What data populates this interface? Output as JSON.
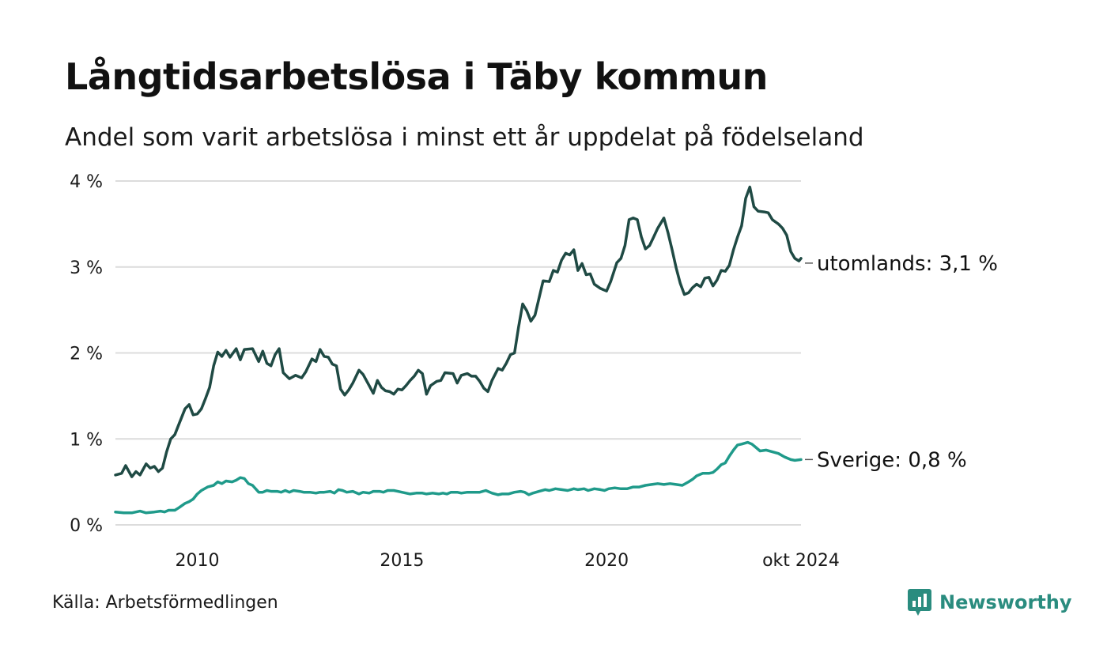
{
  "title": "Långtidsarbetslösa i Täby kommun",
  "subtitle": "Andel som varit arbetslösa i minst ett år uppdelat på födelseland",
  "source": "Källa: Arbetsförmedlingen",
  "brand": {
    "name": "Newsworthy",
    "icon": "newsworthy-logo-icon",
    "color": "#2a8c7f"
  },
  "chart_data": {
    "type": "line",
    "title": "Långtidsarbetslösa i Täby kommun",
    "ylabel": "",
    "xlabel": "",
    "ylim": [
      0,
      4
    ],
    "xlim": [
      2008.0,
      2024.75
    ],
    "y_ticks": [
      {
        "value": 0,
        "label": "0 %"
      },
      {
        "value": 1,
        "label": "1 %"
      },
      {
        "value": 2,
        "label": "2 %"
      },
      {
        "value": 3,
        "label": "3 %"
      },
      {
        "value": 4,
        "label": "4 %"
      }
    ],
    "x_ticks": [
      {
        "value": 2010,
        "label": "2010"
      },
      {
        "value": 2015,
        "label": "2015"
      },
      {
        "value": 2020,
        "label": "2020"
      },
      {
        "value": 2024.75,
        "label": "okt 2024"
      }
    ],
    "grid": true,
    "series": [
      {
        "name": "utomlands",
        "end_label": "utomlands: 3,1 %",
        "color": "#1f4a44",
        "points": [
          [
            2008.0,
            0.58
          ],
          [
            2008.15,
            0.6
          ],
          [
            2008.25,
            0.69
          ],
          [
            2008.4,
            0.56
          ],
          [
            2008.5,
            0.62
          ],
          [
            2008.6,
            0.58
          ],
          [
            2008.75,
            0.71
          ],
          [
            2008.85,
            0.66
          ],
          [
            2008.95,
            0.68
          ],
          [
            2009.05,
            0.62
          ],
          [
            2009.15,
            0.66
          ],
          [
            2009.25,
            0.85
          ],
          [
            2009.35,
            1.0
          ],
          [
            2009.45,
            1.05
          ],
          [
            2009.55,
            1.17
          ],
          [
            2009.7,
            1.35
          ],
          [
            2009.8,
            1.4
          ],
          [
            2009.9,
            1.28
          ],
          [
            2010.0,
            1.29
          ],
          [
            2010.1,
            1.35
          ],
          [
            2010.2,
            1.47
          ],
          [
            2010.3,
            1.6
          ],
          [
            2010.4,
            1.85
          ],
          [
            2010.5,
            2.01
          ],
          [
            2010.6,
            1.96
          ],
          [
            2010.7,
            2.03
          ],
          [
            2010.8,
            1.95
          ],
          [
            2010.95,
            2.05
          ],
          [
            2011.05,
            1.92
          ],
          [
            2011.15,
            2.04
          ],
          [
            2011.35,
            2.05
          ],
          [
            2011.5,
            1.9
          ],
          [
            2011.6,
            2.02
          ],
          [
            2011.7,
            1.88
          ],
          [
            2011.8,
            1.85
          ],
          [
            2011.9,
            1.98
          ],
          [
            2012.0,
            2.05
          ],
          [
            2012.1,
            1.77
          ],
          [
            2012.25,
            1.7
          ],
          [
            2012.4,
            1.74
          ],
          [
            2012.55,
            1.71
          ],
          [
            2012.65,
            1.78
          ],
          [
            2012.8,
            1.93
          ],
          [
            2012.9,
            1.9
          ],
          [
            2013.0,
            2.04
          ],
          [
            2013.1,
            1.96
          ],
          [
            2013.2,
            1.95
          ],
          [
            2013.3,
            1.87
          ],
          [
            2013.4,
            1.85
          ],
          [
            2013.5,
            1.58
          ],
          [
            2013.6,
            1.51
          ],
          [
            2013.7,
            1.57
          ],
          [
            2013.8,
            1.65
          ],
          [
            2013.95,
            1.8
          ],
          [
            2014.05,
            1.75
          ],
          [
            2014.2,
            1.62
          ],
          [
            2014.3,
            1.53
          ],
          [
            2014.4,
            1.68
          ],
          [
            2014.5,
            1.6
          ],
          [
            2014.6,
            1.56
          ],
          [
            2014.7,
            1.55
          ],
          [
            2014.8,
            1.52
          ],
          [
            2014.9,
            1.58
          ],
          [
            2015.0,
            1.57
          ],
          [
            2015.1,
            1.62
          ],
          [
            2015.2,
            1.68
          ],
          [
            2015.3,
            1.73
          ],
          [
            2015.4,
            1.8
          ],
          [
            2015.5,
            1.76
          ],
          [
            2015.6,
            1.52
          ],
          [
            2015.7,
            1.62
          ],
          [
            2015.85,
            1.67
          ],
          [
            2015.95,
            1.68
          ],
          [
            2016.05,
            1.77
          ],
          [
            2016.25,
            1.76
          ],
          [
            2016.35,
            1.65
          ],
          [
            2016.45,
            1.74
          ],
          [
            2016.6,
            1.76
          ],
          [
            2016.7,
            1.73
          ],
          [
            2016.8,
            1.73
          ],
          [
            2016.9,
            1.67
          ],
          [
            2017.0,
            1.59
          ],
          [
            2017.1,
            1.55
          ],
          [
            2017.2,
            1.68
          ],
          [
            2017.35,
            1.82
          ],
          [
            2017.45,
            1.8
          ],
          [
            2017.55,
            1.88
          ],
          [
            2017.65,
            1.98
          ],
          [
            2017.75,
            2.0
          ],
          [
            2017.85,
            2.3
          ],
          [
            2017.95,
            2.57
          ],
          [
            2018.05,
            2.49
          ],
          [
            2018.15,
            2.37
          ],
          [
            2018.25,
            2.44
          ],
          [
            2018.45,
            2.84
          ],
          [
            2018.6,
            2.83
          ],
          [
            2018.7,
            2.96
          ],
          [
            2018.8,
            2.94
          ],
          [
            2018.9,
            3.08
          ],
          [
            2019.0,
            3.16
          ],
          [
            2019.1,
            3.14
          ],
          [
            2019.2,
            3.2
          ],
          [
            2019.3,
            2.96
          ],
          [
            2019.4,
            3.04
          ],
          [
            2019.5,
            2.91
          ],
          [
            2019.6,
            2.92
          ],
          [
            2019.7,
            2.8
          ],
          [
            2019.85,
            2.75
          ],
          [
            2020.0,
            2.72
          ],
          [
            2020.1,
            2.83
          ],
          [
            2020.25,
            3.05
          ],
          [
            2020.35,
            3.1
          ],
          [
            2020.45,
            3.25
          ],
          [
            2020.55,
            3.55
          ],
          [
            2020.65,
            3.57
          ],
          [
            2020.75,
            3.55
          ],
          [
            2020.85,
            3.35
          ],
          [
            2020.95,
            3.21
          ],
          [
            2021.05,
            3.25
          ],
          [
            2021.15,
            3.35
          ],
          [
            2021.25,
            3.45
          ],
          [
            2021.4,
            3.57
          ],
          [
            2021.5,
            3.4
          ],
          [
            2021.6,
            3.2
          ],
          [
            2021.7,
            2.99
          ],
          [
            2021.8,
            2.81
          ],
          [
            2021.9,
            2.68
          ],
          [
            2022.0,
            2.7
          ],
          [
            2022.1,
            2.76
          ],
          [
            2022.2,
            2.8
          ],
          [
            2022.3,
            2.77
          ],
          [
            2022.4,
            2.87
          ],
          [
            2022.5,
            2.88
          ],
          [
            2022.6,
            2.78
          ],
          [
            2022.7,
            2.85
          ],
          [
            2022.8,
            2.96
          ],
          [
            2022.9,
            2.95
          ],
          [
            2023.0,
            3.02
          ],
          [
            2023.1,
            3.2
          ],
          [
            2023.2,
            3.35
          ],
          [
            2023.3,
            3.48
          ],
          [
            2023.4,
            3.8
          ],
          [
            2023.5,
            3.93
          ],
          [
            2023.6,
            3.7
          ],
          [
            2023.7,
            3.65
          ],
          [
            2023.85,
            3.64
          ],
          [
            2023.95,
            3.63
          ],
          [
            2024.05,
            3.55
          ],
          [
            2024.2,
            3.5
          ],
          [
            2024.3,
            3.45
          ],
          [
            2024.4,
            3.37
          ],
          [
            2024.5,
            3.18
          ],
          [
            2024.6,
            3.1
          ],
          [
            2024.7,
            3.07
          ],
          [
            2024.75,
            3.1
          ]
        ]
      },
      {
        "name": "Sverige",
        "end_label": "Sverige: 0,8 %",
        "color": "#1f9a8a",
        "points": [
          [
            2008.0,
            0.15
          ],
          [
            2008.2,
            0.14
          ],
          [
            2008.4,
            0.14
          ],
          [
            2008.6,
            0.16
          ],
          [
            2008.75,
            0.14
          ],
          [
            2008.95,
            0.15
          ],
          [
            2009.1,
            0.16
          ],
          [
            2009.2,
            0.15
          ],
          [
            2009.3,
            0.17
          ],
          [
            2009.45,
            0.17
          ],
          [
            2009.55,
            0.2
          ],
          [
            2009.7,
            0.25
          ],
          [
            2009.8,
            0.27
          ],
          [
            2009.9,
            0.3
          ],
          [
            2010.0,
            0.36
          ],
          [
            2010.1,
            0.4
          ],
          [
            2010.25,
            0.44
          ],
          [
            2010.4,
            0.46
          ],
          [
            2010.5,
            0.5
          ],
          [
            2010.6,
            0.48
          ],
          [
            2010.7,
            0.51
          ],
          [
            2010.85,
            0.5
          ],
          [
            2010.95,
            0.52
          ],
          [
            2011.05,
            0.55
          ],
          [
            2011.15,
            0.54
          ],
          [
            2011.25,
            0.48
          ],
          [
            2011.35,
            0.46
          ],
          [
            2011.5,
            0.38
          ],
          [
            2011.6,
            0.38
          ],
          [
            2011.7,
            0.4
          ],
          [
            2011.8,
            0.39
          ],
          [
            2011.95,
            0.39
          ],
          [
            2012.05,
            0.38
          ],
          [
            2012.15,
            0.4
          ],
          [
            2012.25,
            0.38
          ],
          [
            2012.35,
            0.4
          ],
          [
            2012.5,
            0.39
          ],
          [
            2012.6,
            0.38
          ],
          [
            2012.75,
            0.38
          ],
          [
            2012.9,
            0.37
          ],
          [
            2013.0,
            0.38
          ],
          [
            2013.1,
            0.38
          ],
          [
            2013.25,
            0.39
          ],
          [
            2013.35,
            0.37
          ],
          [
            2013.45,
            0.41
          ],
          [
            2013.55,
            0.4
          ],
          [
            2013.65,
            0.38
          ],
          [
            2013.8,
            0.39
          ],
          [
            2013.95,
            0.36
          ],
          [
            2014.05,
            0.38
          ],
          [
            2014.2,
            0.37
          ],
          [
            2014.3,
            0.39
          ],
          [
            2014.45,
            0.39
          ],
          [
            2014.55,
            0.38
          ],
          [
            2014.65,
            0.4
          ],
          [
            2014.8,
            0.4
          ],
          [
            2014.9,
            0.39
          ],
          [
            2015.0,
            0.38
          ],
          [
            2015.1,
            0.37
          ],
          [
            2015.2,
            0.36
          ],
          [
            2015.35,
            0.37
          ],
          [
            2015.5,
            0.37
          ],
          [
            2015.6,
            0.36
          ],
          [
            2015.75,
            0.37
          ],
          [
            2015.9,
            0.36
          ],
          [
            2016.0,
            0.37
          ],
          [
            2016.1,
            0.36
          ],
          [
            2016.2,
            0.38
          ],
          [
            2016.35,
            0.38
          ],
          [
            2016.45,
            0.37
          ],
          [
            2016.6,
            0.38
          ],
          [
            2016.75,
            0.38
          ],
          [
            2016.9,
            0.38
          ],
          [
            2017.05,
            0.4
          ],
          [
            2017.2,
            0.37
          ],
          [
            2017.35,
            0.35
          ],
          [
            2017.45,
            0.36
          ],
          [
            2017.6,
            0.36
          ],
          [
            2017.75,
            0.38
          ],
          [
            2017.9,
            0.39
          ],
          [
            2018.0,
            0.38
          ],
          [
            2018.1,
            0.35
          ],
          [
            2018.2,
            0.37
          ],
          [
            2018.35,
            0.39
          ],
          [
            2018.5,
            0.41
          ],
          [
            2018.6,
            0.4
          ],
          [
            2018.75,
            0.42
          ],
          [
            2018.9,
            0.41
          ],
          [
            2019.05,
            0.4
          ],
          [
            2019.2,
            0.42
          ],
          [
            2019.3,
            0.41
          ],
          [
            2019.45,
            0.42
          ],
          [
            2019.55,
            0.4
          ],
          [
            2019.7,
            0.42
          ],
          [
            2019.85,
            0.41
          ],
          [
            2019.95,
            0.4
          ],
          [
            2020.05,
            0.42
          ],
          [
            2020.2,
            0.43
          ],
          [
            2020.35,
            0.42
          ],
          [
            2020.5,
            0.42
          ],
          [
            2020.65,
            0.44
          ],
          [
            2020.8,
            0.44
          ],
          [
            2020.95,
            0.46
          ],
          [
            2021.1,
            0.47
          ],
          [
            2021.25,
            0.48
          ],
          [
            2021.4,
            0.47
          ],
          [
            2021.55,
            0.48
          ],
          [
            2021.7,
            0.47
          ],
          [
            2021.85,
            0.46
          ],
          [
            2022.0,
            0.5
          ],
          [
            2022.1,
            0.53
          ],
          [
            2022.2,
            0.57
          ],
          [
            2022.35,
            0.6
          ],
          [
            2022.5,
            0.6
          ],
          [
            2022.6,
            0.61
          ],
          [
            2022.7,
            0.65
          ],
          [
            2022.8,
            0.7
          ],
          [
            2022.9,
            0.72
          ],
          [
            2023.0,
            0.8
          ],
          [
            2023.1,
            0.87
          ],
          [
            2023.2,
            0.93
          ],
          [
            2023.3,
            0.94
          ],
          [
            2023.45,
            0.96
          ],
          [
            2023.55,
            0.94
          ],
          [
            2023.65,
            0.9
          ],
          [
            2023.75,
            0.86
          ],
          [
            2023.9,
            0.87
          ],
          [
            2024.05,
            0.85
          ],
          [
            2024.2,
            0.83
          ],
          [
            2024.35,
            0.79
          ],
          [
            2024.5,
            0.76
          ],
          [
            2024.6,
            0.75
          ],
          [
            2024.75,
            0.76
          ]
        ]
      }
    ]
  }
}
